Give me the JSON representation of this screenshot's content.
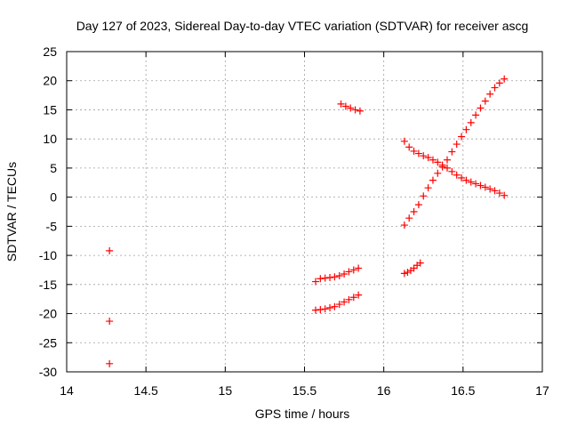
{
  "chart_data": {
    "type": "scatter",
    "title": "Day 127 of 2023, Sidereal Day-to-day VTEC variation (SDTVAR) for receiver ascg",
    "xlabel": "GPS time / hours",
    "ylabel": "SDTVAR / TECUs",
    "xlim": [
      14,
      17
    ],
    "ylim": [
      -30,
      25
    ],
    "xticks": [
      14,
      14.5,
      15,
      15.5,
      16,
      16.5,
      17
    ],
    "xtick_labels": [
      "14",
      "14.5",
      "15",
      "15.5",
      "16",
      "16.5",
      "17"
    ],
    "yticks": [
      -30,
      -25,
      -20,
      -15,
      -10,
      -5,
      0,
      5,
      10,
      15,
      20,
      25
    ],
    "ytick_labels": [
      "-30",
      "-25",
      "-20",
      "-15",
      "-10",
      "-5",
      "0",
      "5",
      "10",
      "15",
      "20",
      "25"
    ],
    "grid": true,
    "marker": "plus",
    "color": "#ff0000",
    "series": [
      {
        "x": [
          14.27
        ],
        "y": [
          -9.2
        ]
      },
      {
        "x": [
          14.27
        ],
        "y": [
          -21.3
        ]
      },
      {
        "x": [
          14.27
        ],
        "y": [
          -28.6
        ]
      },
      {
        "x": [
          15.73,
          15.76,
          15.79,
          15.82,
          15.85
        ],
        "y": [
          16.0,
          15.6,
          15.3,
          15.0,
          14.8
        ]
      },
      {
        "x": [
          15.57,
          15.6,
          15.63,
          15.66,
          15.69,
          15.72,
          15.75,
          15.78,
          15.81,
          15.84
        ],
        "y": [
          -14.5,
          -14.0,
          -13.9,
          -13.8,
          -13.7,
          -13.5,
          -13.2,
          -12.8,
          -12.5,
          -12.2
        ]
      },
      {
        "x": [
          15.57,
          15.6,
          15.63,
          15.66,
          15.69,
          15.72,
          15.75,
          15.78,
          15.81,
          15.84
        ],
        "y": [
          -19.4,
          -19.3,
          -19.2,
          -19.0,
          -18.8,
          -18.4,
          -18.0,
          -17.6,
          -17.2,
          -16.8
        ]
      },
      {
        "x": [
          16.13,
          16.15,
          16.17,
          16.19,
          16.21,
          16.23
        ],
        "y": [
          -13.1,
          -12.9,
          -12.6,
          -12.2,
          -11.7,
          -11.3
        ]
      },
      {
        "x": [
          16.13,
          16.16,
          16.19,
          16.22,
          16.25,
          16.28,
          16.31,
          16.34,
          16.37,
          16.4,
          16.43,
          16.46,
          16.49,
          16.52,
          16.55,
          16.58,
          16.61,
          16.64,
          16.67,
          16.7,
          16.73,
          16.76
        ],
        "y": [
          9.6,
          8.6,
          7.9,
          7.5,
          7.1,
          6.8,
          6.4,
          6.0,
          5.5,
          5.0,
          4.4,
          3.8,
          3.3,
          2.9,
          2.6,
          2.3,
          2.0,
          1.7,
          1.4,
          1.1,
          0.7,
          0.3
        ]
      },
      {
        "x": [
          16.13,
          16.16,
          16.19,
          16.22,
          16.25,
          16.28,
          16.31,
          16.34,
          16.37,
          16.4,
          16.43,
          16.46,
          16.49,
          16.52,
          16.55,
          16.58,
          16.61,
          16.64,
          16.67,
          16.7,
          16.73,
          16.76
        ],
        "y": [
          -4.8,
          -3.6,
          -2.5,
          -1.3,
          0.2,
          1.6,
          2.9,
          4.1,
          5.2,
          6.4,
          7.8,
          9.1,
          10.4,
          11.6,
          12.8,
          14.1,
          15.3,
          16.5,
          17.7,
          18.8,
          19.6,
          20.3
        ]
      }
    ]
  }
}
